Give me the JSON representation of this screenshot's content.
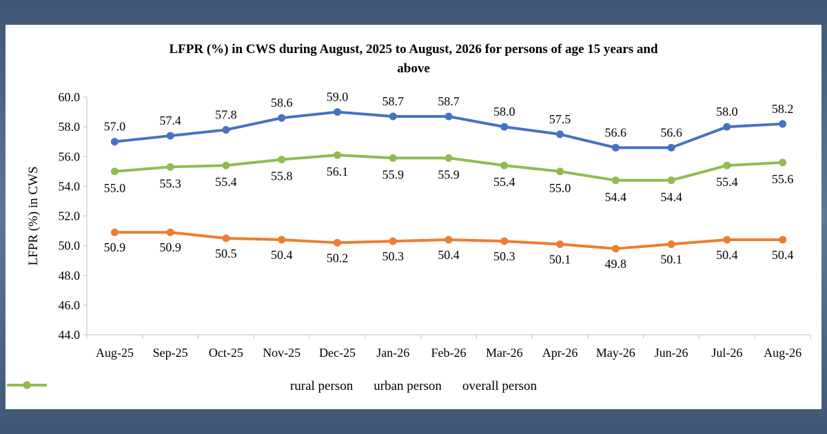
{
  "chart_data": {
    "type": "line",
    "title_line1": "LFPR  (%) in CWS during  August, 2025 to  August, 2026 for persons of  age 15 years and",
    "title_line2": "above",
    "ylabel": "LFPR (%) in CWS",
    "xlabel": "",
    "ylim": [
      44.0,
      60.0
    ],
    "yticks": [
      "44.0",
      "46.0",
      "48.0",
      "50.0",
      "52.0",
      "54.0",
      "56.0",
      "58.0",
      "60.0"
    ],
    "grid": false,
    "legend_position": "bottom",
    "categories": [
      "Aug-25",
      "Sep-25",
      "Oct-25",
      "Nov-25",
      "Dec-25",
      "Jan-26",
      "Feb-26",
      "Mar-26",
      "Apr-26",
      "May-26",
      "Jun-26",
      "Jul-26",
      "Aug-26"
    ],
    "series": [
      {
        "name": "rural person",
        "color": "#4472c4",
        "values": [
          57.0,
          57.4,
          57.8,
          58.6,
          59.0,
          58.7,
          58.7,
          58.0,
          57.5,
          56.6,
          56.6,
          58.0,
          58.2
        ]
      },
      {
        "name": "urban person",
        "color": "#ed7d31",
        "values": [
          50.9,
          50.9,
          50.5,
          50.4,
          50.2,
          50.3,
          50.4,
          50.3,
          50.1,
          49.8,
          50.1,
          50.4,
          50.4
        ]
      },
      {
        "name": "overall person",
        "color": "#8fbc4f",
        "values": [
          55.0,
          55.3,
          55.4,
          55.8,
          56.1,
          55.9,
          55.9,
          55.4,
          55.0,
          54.4,
          54.4,
          55.4,
          55.6
        ]
      }
    ]
  }
}
